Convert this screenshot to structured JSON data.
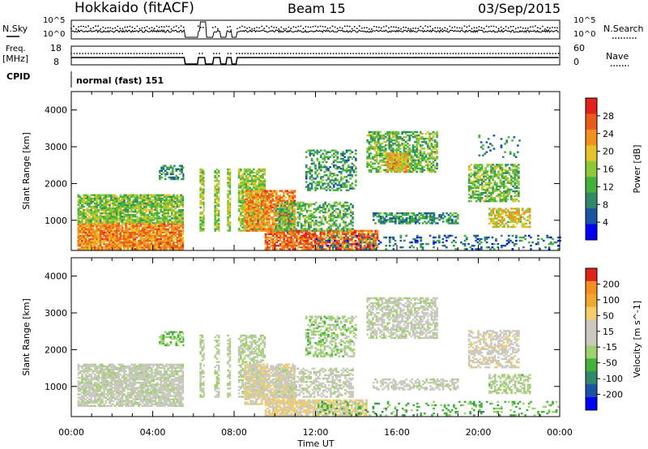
{
  "header": {
    "station": "Hokkaido (fitACF)",
    "beam": "Beam 15",
    "date": "03/Sep/2015"
  },
  "summary": {
    "nsky_label": "N.Sky",
    "nsearch_label": "N.Search",
    "noise_ticks": [
      "10^5",
      "10^0"
    ],
    "freq_label": "Freq.",
    "freq_unit": "[MHz]",
    "freq_ticks": [
      "18",
      "8"
    ],
    "nave_label": "Nave",
    "nave_ticks": [
      "60",
      "0"
    ],
    "cpid_label": "CPID",
    "cpid_value": "normal (fast) 151"
  },
  "colors": {
    "power": [
      "#0000ff",
      "#1c54a4",
      "#2f8a69",
      "#42b23c",
      "#8dc83b",
      "#e6c22b",
      "#f4901f",
      "#ea5a1c",
      "#e2231a"
    ],
    "velocity": [
      "#e2231a",
      "#f4901f",
      "#f2a72e",
      "#f3cf6b",
      "#c9c9c0",
      "#c9c9c0",
      "#9fd26b",
      "#42b23c",
      "#2f8a69",
      "#1c54a4",
      "#0000ff"
    ]
  },
  "chart_data": [
    {
      "type": "heatmap",
      "panel": "power",
      "ylabel": "Slant Range [km]",
      "y_ticks": [
        "4000",
        "3000",
        "2000",
        "1000"
      ],
      "ylim": [
        180,
        4500
      ],
      "xlim_hours": [
        0,
        24
      ],
      "colorbar": {
        "label": "Power [dB]",
        "ticks": [
          "28",
          "24",
          "20",
          "16",
          "12",
          "8",
          "4"
        ],
        "range": [
          0,
          30
        ]
      },
      "blobs": [
        {
          "t0": 0.3,
          "t1": 5.5,
          "r0": 900,
          "r1": 1700,
          "level": 14,
          "density": 0.85
        },
        {
          "t0": 0.3,
          "t1": 5.5,
          "r0": 200,
          "r1": 900,
          "level": 22,
          "density": 0.9
        },
        {
          "t0": 4.3,
          "t1": 5.7,
          "r0": 2100,
          "r1": 2500,
          "level": 9,
          "density": 0.5
        },
        {
          "t0": 6.3,
          "t1": 9.5,
          "r0": 700,
          "r1": 2400,
          "level": 15,
          "density": 0.75
        },
        {
          "t0": 8.5,
          "t1": 11.0,
          "r0": 700,
          "r1": 1800,
          "level": 22,
          "density": 0.75
        },
        {
          "t0": 9.5,
          "t1": 15.0,
          "r0": 200,
          "r1": 700,
          "level": 24,
          "density": 0.8
        },
        {
          "t0": 10.0,
          "t1": 13.8,
          "r0": 700,
          "r1": 1500,
          "level": 12,
          "density": 0.5
        },
        {
          "t0": 11.5,
          "t1": 14.0,
          "r0": 1800,
          "r1": 2900,
          "level": 10,
          "density": 0.45
        },
        {
          "t0": 14.5,
          "t1": 18.0,
          "r0": 2300,
          "r1": 3400,
          "level": 13,
          "density": 0.6
        },
        {
          "t0": 15.5,
          "t1": 16.5,
          "r0": 2300,
          "r1": 2800,
          "level": 19,
          "density": 0.8
        },
        {
          "t0": 14.8,
          "t1": 19.0,
          "r0": 900,
          "r1": 1200,
          "level": 9,
          "density": 0.55
        },
        {
          "t0": 19.5,
          "t1": 22.0,
          "r0": 1500,
          "r1": 2500,
          "level": 13,
          "density": 0.6
        },
        {
          "t0": 20.5,
          "t1": 22.5,
          "r0": 800,
          "r1": 1300,
          "level": 18,
          "density": 0.6
        },
        {
          "t0": 12.0,
          "t1": 24.0,
          "r0": 200,
          "r1": 600,
          "level": 7,
          "density": 0.22
        },
        {
          "t0": 20.0,
          "t1": 22.0,
          "r0": 2700,
          "r1": 3300,
          "level": 8,
          "density": 0.15
        }
      ]
    },
    {
      "type": "heatmap",
      "panel": "velocity",
      "ylabel": "Slant Range [km]",
      "y_ticks": [
        "4000",
        "3000",
        "2000",
        "1000"
      ],
      "ylim": [
        180,
        4500
      ],
      "xlim_hours": [
        0,
        24
      ],
      "xlabel": "Time UT",
      "x_ticks": [
        "00:00",
        "04:00",
        "08:00",
        "12:00",
        "16:00",
        "20:00",
        "00:00"
      ],
      "colorbar": {
        "label": "Velocity [m s^-1]",
        "ticks": [
          "200",
          "100",
          "50",
          "15",
          "-15",
          "-50",
          "-100",
          "-200"
        ],
        "range": [
          -250,
          250
        ]
      },
      "blobs": [
        {
          "t0": 0.3,
          "t1": 5.5,
          "r0": 450,
          "r1": 1600,
          "level": 0,
          "density": 0.8
        },
        {
          "t0": 4.3,
          "t1": 5.7,
          "r0": 2100,
          "r1": 2500,
          "level": -60,
          "density": 0.5
        },
        {
          "t0": 6.3,
          "t1": 9.5,
          "r0": 700,
          "r1": 2400,
          "level": -20,
          "density": 0.55
        },
        {
          "t0": 8.5,
          "t1": 11.0,
          "r0": 500,
          "r1": 1600,
          "level": 60,
          "density": 0.7
        },
        {
          "t0": 9.5,
          "t1": 14.5,
          "r0": 200,
          "r1": 650,
          "level": 70,
          "density": 0.75
        },
        {
          "t0": 10.0,
          "t1": 13.8,
          "r0": 700,
          "r1": 1500,
          "level": 0,
          "density": 0.5
        },
        {
          "t0": 11.5,
          "t1": 14.0,
          "r0": 1800,
          "r1": 2900,
          "level": -40,
          "density": 0.45
        },
        {
          "t0": 14.5,
          "t1": 18.0,
          "r0": 2300,
          "r1": 3400,
          "level": 0,
          "density": 0.6
        },
        {
          "t0": 14.8,
          "t1": 19.0,
          "r0": 900,
          "r1": 1200,
          "level": 10,
          "density": 0.5
        },
        {
          "t0": 19.5,
          "t1": 22.0,
          "r0": 1500,
          "r1": 2500,
          "level": 40,
          "density": 0.55
        },
        {
          "t0": 20.5,
          "t1": 22.5,
          "r0": 800,
          "r1": 1300,
          "level": -30,
          "density": 0.55
        },
        {
          "t0": 12.0,
          "t1": 24.0,
          "r0": 200,
          "r1": 600,
          "level": -80,
          "density": 0.2
        }
      ]
    }
  ],
  "gaps_hours": [
    [
      5.55,
      6.2
    ],
    [
      6.55,
      6.95
    ],
    [
      7.3,
      7.6
    ],
    [
      7.85,
      8.1
    ]
  ]
}
